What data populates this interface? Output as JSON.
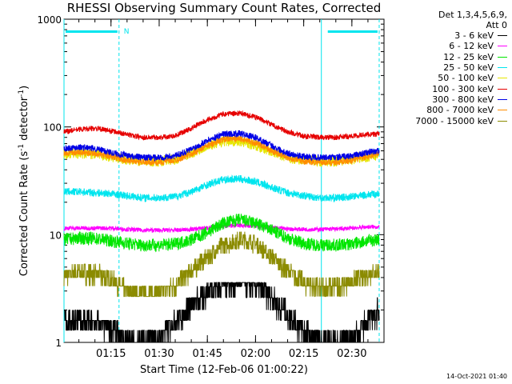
{
  "title": "RHESSI Observing Summary Count Rates, Corrected",
  "legend": {
    "header_line1": "Det 1,3,4,5,6,9,",
    "header_line2": "Att 0"
  },
  "timestamp": "14-Oct-2021 01:40",
  "night_marker": "N",
  "colors": {
    "saa_bar": "#00e5ee",
    "axes": "#000000"
  },
  "chart_data": {
    "type": "line",
    "title": "RHESSI Observing Summary Count Rates, Corrected",
    "xlabel": "Start Time (12-Feb-06 01:00:22)",
    "ylabel": "Corrected Count Rate (s⁻¹ detector⁻¹)",
    "ylabel_parts": [
      "Corrected Count Rate (s",
      "-1",
      " detector",
      "-1",
      ")"
    ],
    "x_range": [
      "01:00:22",
      "02:40:00"
    ],
    "ylim": [
      1,
      1000
    ],
    "yscale": "log",
    "x_ticks": [
      "01:15",
      "01:30",
      "01:45",
      "02:00",
      "02:15",
      "02:30"
    ],
    "y_ticks": [
      "1",
      "10",
      "100",
      "1000"
    ],
    "night_intervals": [
      [
        "01:00:22",
        "01:17:30"
      ],
      [
        "02:22:00",
        "02:38:30"
      ]
    ],
    "boundaries": {
      "solid": [
        "01:00:22",
        "02:20:30"
      ],
      "dashed": [
        "01:17:30",
        "02:38:30"
      ]
    },
    "series": [
      {
        "name": "3 - 6 keV",
        "color": "#000000",
        "x": [
          "01:00:22",
          "01:05",
          "01:10",
          "01:15",
          "01:20",
          "01:25",
          "01:30",
          "01:35",
          "01:40",
          "01:45",
          "01:50",
          "01:55",
          "02:00",
          "02:05",
          "02:10",
          "02:15",
          "02:20",
          "02:25",
          "02:30",
          "02:35",
          "02:38"
        ],
        "values": [
          1.6,
          1.6,
          1.5,
          1.4,
          1.0,
          1.0,
          1.1,
          1.6,
          2.2,
          3.0,
          3.6,
          3.6,
          3.4,
          2.6,
          1.8,
          1.3,
          1.0,
          1.0,
          1.1,
          1.6,
          1.9
        ]
      },
      {
        "name": "6 - 12 keV",
        "color": "#ff00ff",
        "x": [
          "01:00:22",
          "01:05",
          "01:10",
          "01:15",
          "01:20",
          "01:25",
          "01:30",
          "01:35",
          "01:40",
          "01:45",
          "01:50",
          "01:55",
          "02:00",
          "02:05",
          "02:10",
          "02:15",
          "02:20",
          "02:25",
          "02:30",
          "02:35",
          "02:38"
        ],
        "values": [
          11.5,
          11.5,
          11.5,
          11.5,
          11.2,
          11.0,
          11.0,
          11.0,
          11.2,
          11.6,
          12.0,
          12.2,
          12.0,
          11.6,
          11.3,
          11.2,
          11.2,
          11.3,
          11.5,
          11.8,
          11.8
        ]
      },
      {
        "name": "12 - 25 keV",
        "color": "#00e600",
        "x": [
          "01:00:22",
          "01:05",
          "01:10",
          "01:15",
          "01:20",
          "01:25",
          "01:30",
          "01:35",
          "01:40",
          "01:45",
          "01:50",
          "01:55",
          "02:00",
          "02:05",
          "02:10",
          "02:15",
          "02:20",
          "02:25",
          "02:30",
          "02:35",
          "02:38"
        ],
        "values": [
          9.0,
          9.3,
          9.2,
          8.8,
          8.3,
          8.0,
          8.0,
          8.2,
          9.0,
          10.5,
          12.8,
          13.8,
          12.8,
          11.0,
          9.3,
          8.3,
          8.0,
          8.0,
          8.2,
          8.8,
          9.0
        ]
      },
      {
        "name": "25 - 50 keV",
        "color": "#00e5ee",
        "x": [
          "01:00:22",
          "01:05",
          "01:10",
          "01:15",
          "01:20",
          "01:25",
          "01:30",
          "01:35",
          "01:40",
          "01:45",
          "01:50",
          "01:55",
          "02:00",
          "02:05",
          "02:10",
          "02:15",
          "02:20",
          "02:25",
          "02:30",
          "02:35",
          "02:38"
        ],
        "values": [
          25.0,
          25.0,
          24.5,
          24.0,
          23.0,
          22.0,
          22.0,
          22.5,
          25.0,
          29.0,
          32.5,
          33.0,
          31.0,
          27.5,
          24.5,
          23.0,
          22.0,
          22.0,
          22.5,
          23.5,
          24.0
        ]
      },
      {
        "name": "50 - 100 keV",
        "color": "#e6e600",
        "x": [
          "01:00:22",
          "01:05",
          "01:10",
          "01:15",
          "01:20",
          "01:25",
          "01:30",
          "01:35",
          "01:40",
          "01:45",
          "01:50",
          "01:55",
          "02:00",
          "02:05",
          "02:10",
          "02:15",
          "02:20",
          "02:25",
          "02:30",
          "02:35",
          "02:38"
        ],
        "values": [
          56,
          57,
          56,
          53,
          50,
          48,
          48,
          50,
          57,
          67,
          74,
          74,
          68,
          59,
          52,
          49,
          48,
          48,
          50,
          53,
          55
        ]
      },
      {
        "name": "100 - 300 keV",
        "color": "#e60000",
        "x": [
          "01:00:22",
          "01:05",
          "01:10",
          "01:15",
          "01:20",
          "01:25",
          "01:30",
          "01:35",
          "01:40",
          "01:45",
          "01:50",
          "01:55",
          "02:00",
          "02:05",
          "02:10",
          "02:15",
          "02:20",
          "02:25",
          "02:30",
          "02:35",
          "02:38"
        ],
        "values": [
          90,
          95,
          97,
          92,
          85,
          80,
          80,
          83,
          97,
          117,
          132,
          134,
          124,
          105,
          90,
          82,
          80,
          80,
          82,
          85,
          86
        ]
      },
      {
        "name": "300 - 800 keV",
        "color": "#0000e6",
        "x": [
          "01:00:22",
          "01:05",
          "01:10",
          "01:15",
          "01:20",
          "01:25",
          "01:30",
          "01:35",
          "01:40",
          "01:45",
          "01:50",
          "01:55",
          "02:00",
          "02:05",
          "02:10",
          "02:15",
          "02:20",
          "02:25",
          "02:30",
          "02:35",
          "02:38"
        ],
        "values": [
          63,
          65,
          63,
          58,
          54,
          52,
          52,
          54,
          62,
          75,
          86,
          87,
          80,
          67,
          57,
          53,
          52,
          52,
          54,
          58,
          60
        ]
      },
      {
        "name": "800 - 7000 keV",
        "color": "#ff8c00",
        "x": [
          "01:00:22",
          "01:05",
          "01:10",
          "01:15",
          "01:20",
          "01:25",
          "01:30",
          "01:35",
          "01:40",
          "01:45",
          "01:50",
          "01:55",
          "02:00",
          "02:05",
          "02:10",
          "02:15",
          "02:20",
          "02:25",
          "02:30",
          "02:35",
          "02:38"
        ],
        "values": [
          57,
          58,
          57,
          53,
          49,
          47,
          47,
          49,
          56,
          67,
          77,
          78,
          71,
          60,
          52,
          48,
          47,
          47,
          49,
          53,
          56
        ]
      },
      {
        "name": "7000 - 15000 keV",
        "color": "#8b8b00",
        "x": [
          "01:00:22",
          "01:05",
          "01:10",
          "01:15",
          "01:20",
          "01:25",
          "01:30",
          "01:35",
          "01:40",
          "01:45",
          "01:50",
          "01:55",
          "02:00",
          "02:05",
          "02:10",
          "02:15",
          "02:20",
          "02:25",
          "02:30",
          "02:35",
          "02:38"
        ],
        "values": [
          4.2,
          4.4,
          4.3,
          3.9,
          3.0,
          2.8,
          2.9,
          3.4,
          4.6,
          6.2,
          8.0,
          9.0,
          8.2,
          6.3,
          4.6,
          3.6,
          3.2,
          3.3,
          3.7,
          4.2,
          4.5
        ]
      }
    ]
  }
}
